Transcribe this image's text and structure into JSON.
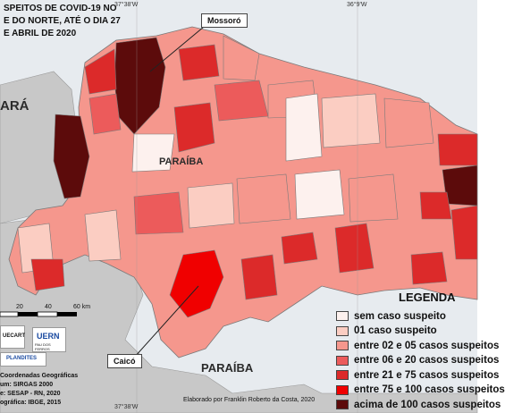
{
  "title_lines": [
    "SPEITOS DE COVID-19 NO",
    "E DO NORTE, ATÉ O DIA 27",
    "E ABRIL DE 2020"
  ],
  "coords": {
    "top_left": "37°38'W",
    "top_right": "36°9'W",
    "bottom": "37°38'W"
  },
  "state_labels": {
    "ceara": "ARÁ",
    "paraiba_top": "PARAÍBA",
    "paraiba_bottom": "PARAÍBA"
  },
  "callouts": {
    "mossoro": "Mossoró",
    "caico": "Caicó"
  },
  "scale": {
    "ticks": [
      "20",
      "40",
      "60 km"
    ]
  },
  "logos": {
    "uern": "UERN",
    "uern_sub": "PAU DOS FERROS",
    "plandites": "PLANDITES",
    "uecart": "UECART"
  },
  "credits": [
    "Coordenadas Geográficas",
    "um: SIRGAS 2000",
    "e: SESAP - RN, 2020",
    "ográfica: IBGE, 2015"
  ],
  "author": "Elaborado por Franklin Roberto da Costa, 2020",
  "legend": {
    "title": "LEGENDA",
    "items": [
      {
        "label": "sem caso suspeito",
        "color": "#fdf1ee"
      },
      {
        "label": "01 caso suspeito",
        "color": "#fbcdc2"
      },
      {
        "label": "entre 02 e 05 casos suspeitos",
        "color": "#f5978d"
      },
      {
        "label": "entre 06 e 20 casos suspeitos",
        "color": "#ec5b5b"
      },
      {
        "label": "entre 21 e 75 casos suspeitos",
        "color": "#dc2a2a"
      },
      {
        "label": "entre 75 e 100 casos suspeitos",
        "color": "#f00000"
      },
      {
        "label": "acima de 100 casos suspeitos",
        "color": "#5c0b0b"
      }
    ]
  },
  "colors": {
    "ocean": "#e7ebef",
    "neighbor": "#c8c8c8",
    "border": "#7a7a7a"
  }
}
